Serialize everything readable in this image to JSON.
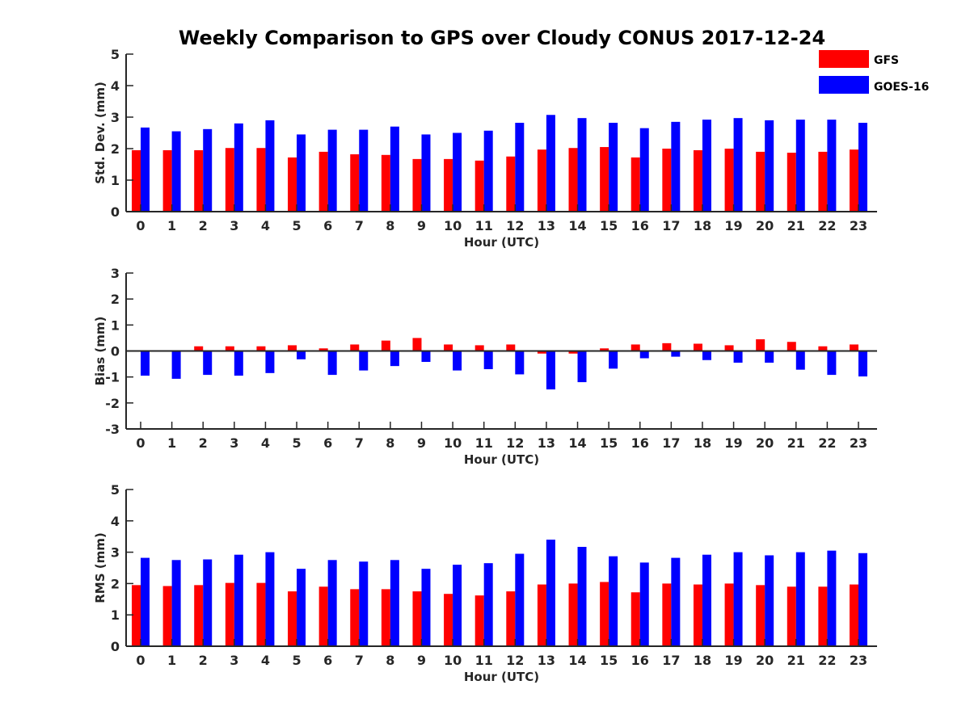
{
  "figure": {
    "title": "Weekly Comparison to GPS over Cloudy CONUS 2017-12-24"
  },
  "legend": {
    "placement": "top-right",
    "items": [
      {
        "label": "GFS",
        "color": "#ff0000"
      },
      {
        "label": "GOES-16",
        "color": "#0000ff"
      }
    ]
  },
  "chart_data": [
    {
      "type": "bar",
      "xlabel": "Hour (UTC)",
      "ylabel": "Std. Dev. (mm)",
      "ylim": [
        0,
        5
      ],
      "yticks": [
        0,
        1,
        2,
        3,
        4,
        5
      ],
      "grid": false,
      "categories": [
        "0",
        "1",
        "2",
        "3",
        "4",
        "5",
        "6",
        "7",
        "8",
        "9",
        "10",
        "11",
        "12",
        "13",
        "14",
        "15",
        "16",
        "17",
        "18",
        "19",
        "20",
        "21",
        "22",
        "23"
      ],
      "series": [
        {
          "name": "GFS",
          "color": "#ff0000",
          "values": [
            1.95,
            1.95,
            1.95,
            2.02,
            2.02,
            1.72,
            1.9,
            1.82,
            1.8,
            1.67,
            1.67,
            1.62,
            1.75,
            1.97,
            2.02,
            2.05,
            1.72,
            2.0,
            1.95,
            2.0,
            1.9,
            1.87,
            1.9,
            1.97
          ]
        },
        {
          "name": "GOES-16",
          "color": "#0000ff",
          "values": [
            2.67,
            2.55,
            2.62,
            2.8,
            2.9,
            2.45,
            2.6,
            2.6,
            2.7,
            2.45,
            2.5,
            2.57,
            2.82,
            3.07,
            2.97,
            2.82,
            2.65,
            2.85,
            2.92,
            2.97,
            2.9,
            2.92,
            2.92,
            2.82
          ]
        }
      ]
    },
    {
      "type": "bar",
      "xlabel": "Hour (UTC)",
      "ylabel": "Bias (mm)",
      "ylim": [
        -3,
        3
      ],
      "yticks": [
        -3,
        -2,
        -1,
        0,
        1,
        2,
        3
      ],
      "grid": false,
      "categories": [
        "0",
        "1",
        "2",
        "3",
        "4",
        "5",
        "6",
        "7",
        "8",
        "9",
        "10",
        "11",
        "12",
        "13",
        "14",
        "15",
        "16",
        "17",
        "18",
        "19",
        "20",
        "21",
        "22",
        "23"
      ],
      "series": [
        {
          "name": "GFS",
          "color": "#ff0000",
          "values": [
            0.0,
            0.03,
            0.18,
            0.18,
            0.18,
            0.22,
            0.1,
            0.25,
            0.4,
            0.5,
            0.25,
            0.22,
            0.25,
            -0.1,
            -0.1,
            0.1,
            0.25,
            0.3,
            0.28,
            0.22,
            0.45,
            0.35,
            0.18,
            0.25
          ]
        },
        {
          "name": "GOES-16",
          "color": "#0000ff",
          "values": [
            -0.95,
            -1.07,
            -0.92,
            -0.95,
            -0.85,
            -0.32,
            -0.92,
            -0.75,
            -0.58,
            -0.42,
            -0.75,
            -0.7,
            -0.9,
            -1.48,
            -1.2,
            -0.68,
            -0.28,
            -0.22,
            -0.35,
            -0.45,
            -0.45,
            -0.72,
            -0.92,
            -0.98
          ]
        }
      ]
    },
    {
      "type": "bar",
      "xlabel": "Hour (UTC)",
      "ylabel": "RMS (mm)",
      "ylim": [
        0,
        5
      ],
      "yticks": [
        0,
        1,
        2,
        3,
        4,
        5
      ],
      "grid": false,
      "categories": [
        "0",
        "1",
        "2",
        "3",
        "4",
        "5",
        "6",
        "7",
        "8",
        "9",
        "10",
        "11",
        "12",
        "13",
        "14",
        "15",
        "16",
        "17",
        "18",
        "19",
        "20",
        "21",
        "22",
        "23"
      ],
      "series": [
        {
          "name": "GFS",
          "color": "#ff0000",
          "values": [
            1.95,
            1.92,
            1.95,
            2.02,
            2.02,
            1.75,
            1.9,
            1.82,
            1.82,
            1.75,
            1.67,
            1.62,
            1.75,
            1.97,
            2.0,
            2.05,
            1.72,
            2.0,
            1.97,
            2.0,
            1.95,
            1.9,
            1.9,
            1.97
          ]
        },
        {
          "name": "GOES-16",
          "color": "#0000ff",
          "values": [
            2.82,
            2.75,
            2.77,
            2.92,
            3.0,
            2.47,
            2.75,
            2.7,
            2.75,
            2.47,
            2.6,
            2.65,
            2.95,
            3.4,
            3.17,
            2.87,
            2.67,
            2.82,
            2.92,
            3.0,
            2.9,
            3.0,
            3.05,
            2.97
          ]
        }
      ]
    }
  ]
}
